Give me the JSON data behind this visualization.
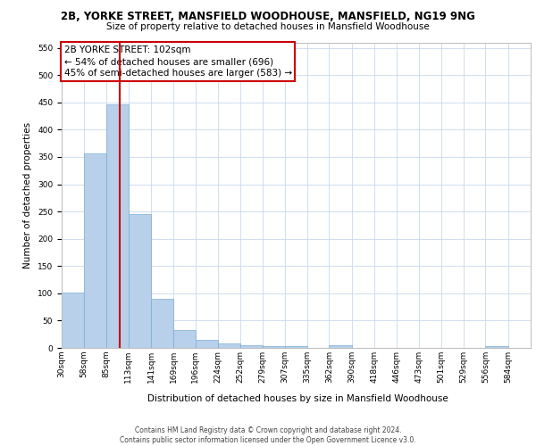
{
  "title_line1": "2B, YORKE STREET, MANSFIELD WOODHOUSE, MANSFIELD, NG19 9NG",
  "title_line2": "Size of property relative to detached houses in Mansfield Woodhouse",
  "xlabel": "Distribution of detached houses by size in Mansfield Woodhouse",
  "ylabel": "Number of detached properties",
  "annotation_line1": "2B YORKE STREET: 102sqm",
  "annotation_line2": "← 54% of detached houses are smaller (696)",
  "annotation_line3": "45% of semi-detached houses are larger (583) →",
  "footer_line1": "Contains HM Land Registry data © Crown copyright and database right 2024.",
  "footer_line2": "Contains public sector information licensed under the Open Government Licence v3.0.",
  "bar_color": "#b8d0ea",
  "bar_edge_color": "#7aadd4",
  "vline_color": "#cc0000",
  "vline_x": 102,
  "categories": [
    "30sqm",
    "58sqm",
    "85sqm",
    "113sqm",
    "141sqm",
    "169sqm",
    "196sqm",
    "224sqm",
    "252sqm",
    "279sqm",
    "307sqm",
    "335sqm",
    "362sqm",
    "390sqm",
    "418sqm",
    "446sqm",
    "473sqm",
    "501sqm",
    "529sqm",
    "556sqm",
    "584sqm"
  ],
  "bin_edges": [
    30,
    58,
    85,
    113,
    141,
    169,
    196,
    224,
    252,
    279,
    307,
    335,
    362,
    390,
    418,
    446,
    473,
    501,
    529,
    556,
    584,
    612
  ],
  "values": [
    102,
    356,
    446,
    246,
    90,
    32,
    15,
    8,
    5,
    4,
    4,
    0,
    5,
    0,
    0,
    0,
    0,
    0,
    0,
    4,
    0
  ],
  "ylim": [
    0,
    560
  ],
  "yticks": [
    0,
    50,
    100,
    150,
    200,
    250,
    300,
    350,
    400,
    450,
    500,
    550
  ],
  "background_color": "#ffffff",
  "grid_color": "#c8d8ec",
  "annotation_box_color": "#ffffff",
  "annotation_box_edgecolor": "#cc0000",
  "title1_fontsize": 8.5,
  "title2_fontsize": 7.5,
  "ylabel_fontsize": 7.5,
  "xlabel_fontsize": 7.5,
  "tick_fontsize": 6.5,
  "footer_fontsize": 5.5,
  "ann_fontsize": 7.5
}
